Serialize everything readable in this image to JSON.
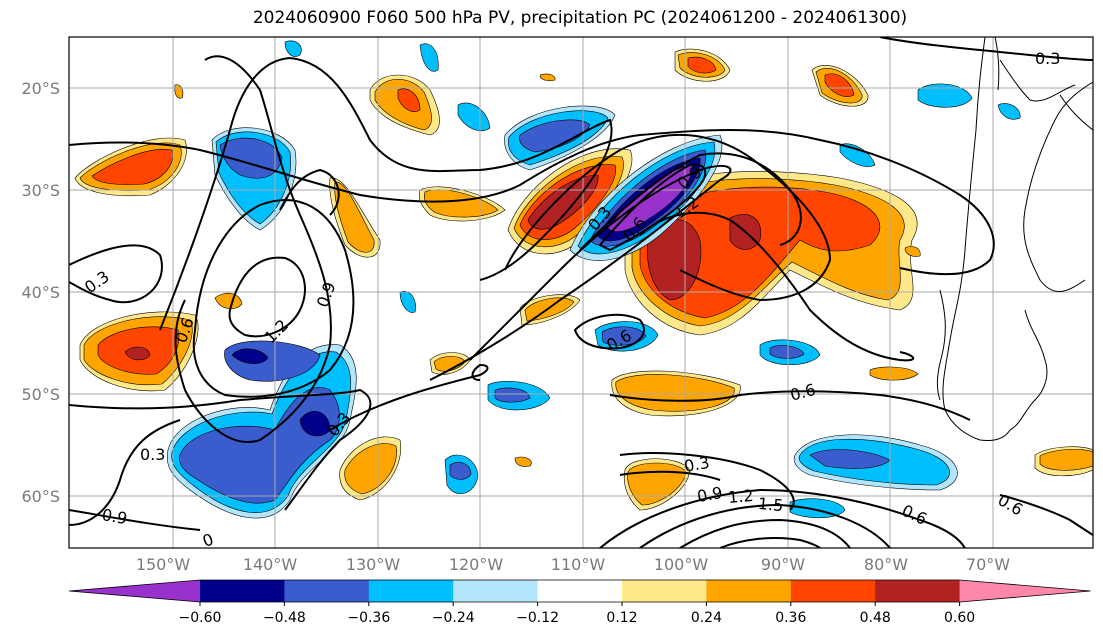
{
  "title": "2024060900 F060 500 hPa PV, precipitation PC (2024061200 - 2024061300)",
  "lon_ticks": [
    "150°W",
    "140°W",
    "130°W",
    "120°W",
    "110°W",
    "100°W",
    "90°W",
    "80°W",
    "70°W"
  ],
  "lat_ticks": [
    "20°S",
    "30°S",
    "40°S",
    "50°S",
    "60°S"
  ],
  "colorbar": {
    "labels": [
      "−0.60",
      "−0.48",
      "−0.36",
      "−0.24",
      "−0.12",
      "0.12",
      "0.24",
      "0.36",
      "0.48",
      "0.60"
    ],
    "colors": [
      "#9932cc",
      "#00008b",
      "#3a5ccc",
      "#00bfff",
      "#b3e5fc",
      "#ffffff",
      "#ffe88a",
      "#ffa500",
      "#ff4500",
      "#b22222",
      "#ff88aa"
    ]
  },
  "contour_labels": [
    "0.3",
    "0.3",
    "0.6",
    "0.9",
    "1.2",
    "0.3",
    "0.6",
    "0.9",
    "0.3",
    "0.6",
    "0.6",
    "0.3",
    "0.9",
    "1.2",
    "1.5",
    "0.6",
    "0.6",
    "0.9",
    "1.2",
    "0.3",
    "0"
  ]
}
